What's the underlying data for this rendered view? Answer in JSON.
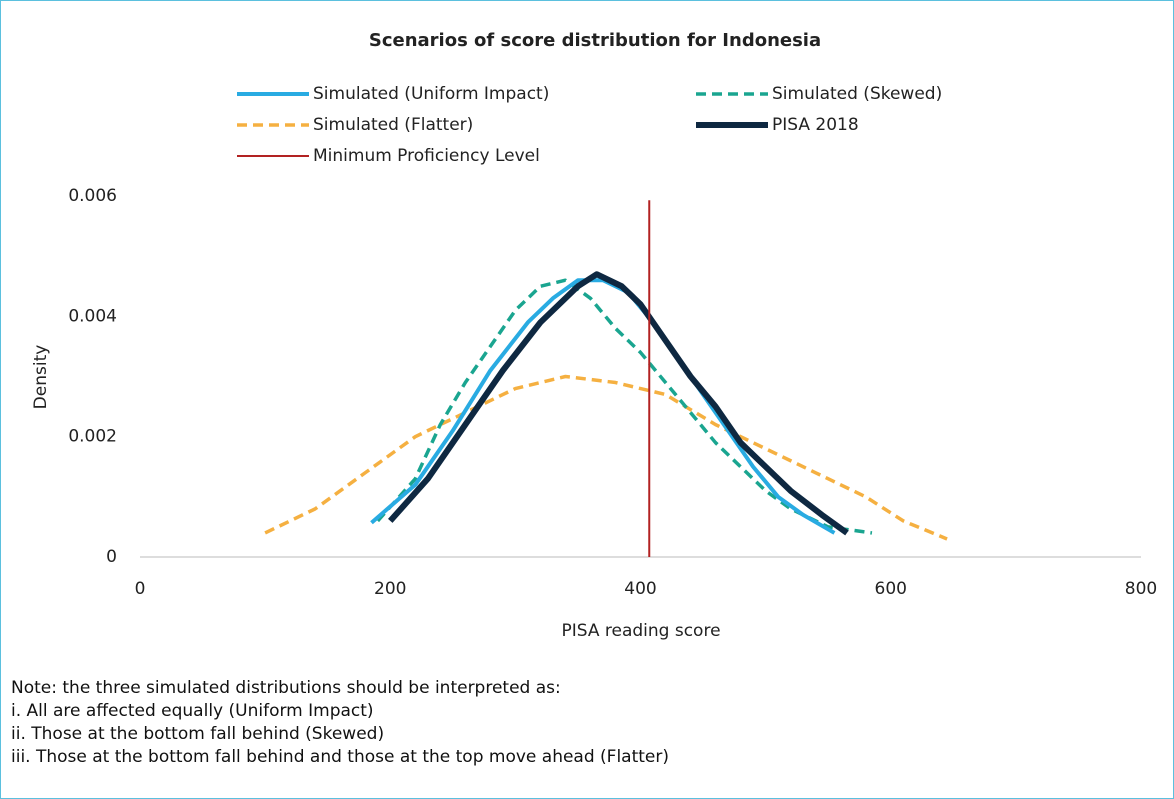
{
  "chart_data": {
    "type": "line",
    "title": "Scenarios of score distribution for Indonesia",
    "x_label": "PISA reading score",
    "y_label": "Density",
    "xlim": [
      0,
      800
    ],
    "xticks": [
      0,
      200,
      400,
      600,
      800
    ],
    "ylim": [
      0,
      0.006
    ],
    "yticks": [
      0,
      0.002,
      0.004,
      0.006
    ],
    "series": [
      {
        "name": "Simulated (Uniform Impact)",
        "color": "#29abe2",
        "style": "solid",
        "width": 4,
        "x": [
          185,
          220,
          250,
          280,
          310,
          330,
          350,
          370,
          390,
          410,
          430,
          450,
          470,
          490,
          510,
          530,
          555
        ],
        "values": [
          0.00057,
          0.0012,
          0.0021,
          0.0031,
          0.0039,
          0.0043,
          0.0046,
          0.0046,
          0.0044,
          0.0039,
          0.0033,
          0.0027,
          0.0021,
          0.0015,
          0.001,
          0.0007,
          0.0004
        ]
      },
      {
        "name": "Simulated (Skewed)",
        "color": "#1aa590",
        "style": "dashed",
        "width": 3.5,
        "x": [
          190,
          220,
          240,
          260,
          280,
          300,
          320,
          340,
          360,
          380,
          400,
          420,
          440,
          460,
          480,
          500,
          520,
          550,
          585
        ],
        "values": [
          0.0006,
          0.0013,
          0.0022,
          0.0029,
          0.0035,
          0.0041,
          0.0045,
          0.0046,
          0.0043,
          0.0038,
          0.0034,
          0.0029,
          0.0024,
          0.0019,
          0.0015,
          0.0011,
          0.0008,
          0.0005,
          0.0004
        ]
      },
      {
        "name": "Simulated (Flatter)",
        "color": "#f5b041",
        "style": "dashed",
        "width": 3.5,
        "x": [
          100,
          140,
          180,
          220,
          260,
          300,
          340,
          380,
          420,
          460,
          500,
          540,
          580,
          610,
          645
        ],
        "values": [
          0.0004,
          0.0008,
          0.0014,
          0.002,
          0.0024,
          0.0028,
          0.003,
          0.0029,
          0.0027,
          0.0022,
          0.0018,
          0.0014,
          0.001,
          0.0006,
          0.0003
        ]
      },
      {
        "name": "PISA 2018",
        "color": "#0e2841",
        "style": "solid",
        "width": 6,
        "x": [
          200,
          230,
          260,
          290,
          320,
          350,
          365,
          385,
          400,
          420,
          440,
          460,
          480,
          500,
          520,
          545,
          565
        ],
        "values": [
          0.0006,
          0.0013,
          0.0022,
          0.0031,
          0.0039,
          0.0045,
          0.0047,
          0.0045,
          0.0042,
          0.0036,
          0.003,
          0.0025,
          0.0019,
          0.0015,
          0.0011,
          0.0007,
          0.0004
        ]
      },
      {
        "name": "Minimum Proficiency Level",
        "color": "#b22222",
        "style": "solid",
        "width": 2,
        "x": [
          407,
          407
        ],
        "values": [
          0,
          0.00593
        ]
      }
    ]
  },
  "notes": [
    "Note: the three simulated distributions should be interpreted as:",
    "i. All are affected equally (Uniform Impact)",
    "ii. Those at the bottom fall behind (Skewed)",
    "iii. Those at the bottom fall behind and those at the top move ahead (Flatter)"
  ]
}
